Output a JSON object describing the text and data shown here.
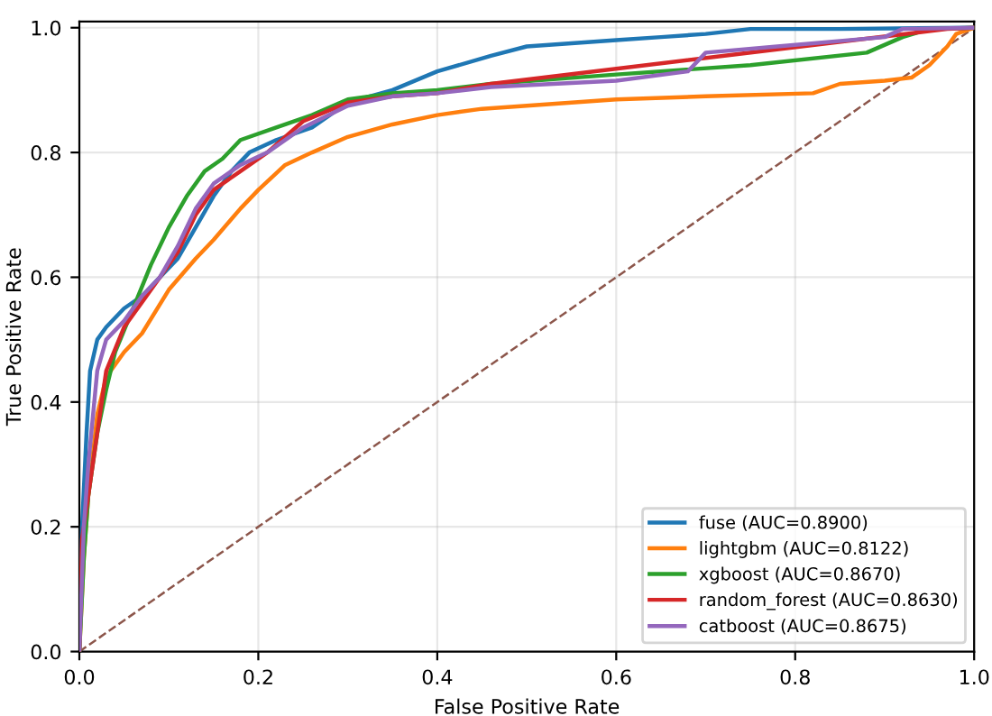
{
  "chart_data": {
    "type": "line",
    "xlabel": "False Positive Rate",
    "ylabel": "True Positive Rate",
    "xlim": [
      0,
      1
    ],
    "ylim": [
      0,
      1.01
    ],
    "xticks": [
      {
        "value": 0,
        "label": "0.0"
      },
      0.2,
      0.4,
      0.6,
      0.8,
      {
        "value": 1,
        "label": "1.0"
      }
    ],
    "yticks": [
      {
        "value": 0,
        "label": "0.0"
      },
      0.2,
      0.4,
      0.6,
      0.8,
      {
        "value": 1,
        "label": "1.0"
      }
    ],
    "grid": true,
    "legend": "bottom right",
    "line_style": "solid",
    "series": [
      {
        "name": "fuse (AUC=0.8900)",
        "color": "#1f77b4",
        "x": [
          0,
          0.003,
          0.008,
          0.012,
          0.02,
          0.03,
          0.05,
          0.07,
          0.09,
          0.11,
          0.13,
          0.15,
          0.17,
          0.19,
          0.22,
          0.26,
          0.3,
          0.35,
          0.4,
          0.46,
          0.5,
          0.55,
          0.6,
          0.65,
          0.7,
          0.75,
          0.85,
          1
        ],
        "values": [
          0,
          0.2,
          0.35,
          0.45,
          0.5,
          0.52,
          0.55,
          0.57,
          0.6,
          0.63,
          0.68,
          0.73,
          0.77,
          0.8,
          0.82,
          0.84,
          0.88,
          0.9,
          0.93,
          0.955,
          0.97,
          0.975,
          0.98,
          0.985,
          0.99,
          0.998,
          0.998,
          1
        ]
      },
      {
        "name": "lightgbm (AUC=0.8122)",
        "color": "#ff7f0e",
        "x": [
          0,
          0.005,
          0.01,
          0.02,
          0.03,
          0.05,
          0.07,
          0.1,
          0.13,
          0.15,
          0.18,
          0.2,
          0.23,
          0.26,
          0.3,
          0.35,
          0.4,
          0.45,
          0.5,
          0.6,
          0.7,
          0.82,
          0.85,
          0.9,
          0.93,
          0.95,
          0.97,
          0.98,
          1
        ],
        "values": [
          0,
          0.15,
          0.25,
          0.38,
          0.44,
          0.48,
          0.51,
          0.58,
          0.63,
          0.66,
          0.71,
          0.74,
          0.78,
          0.8,
          0.825,
          0.845,
          0.86,
          0.87,
          0.875,
          0.885,
          0.89,
          0.895,
          0.91,
          0.915,
          0.92,
          0.94,
          0.97,
          0.99,
          1
        ]
      },
      {
        "name": "xgboost (AUC=0.8670)",
        "color": "#2ca02c",
        "x": [
          0,
          0.005,
          0.01,
          0.02,
          0.03,
          0.04,
          0.06,
          0.08,
          0.1,
          0.12,
          0.14,
          0.16,
          0.18,
          0.22,
          0.26,
          0.3,
          0.35,
          0.4,
          0.46,
          0.6,
          0.75,
          0.88,
          0.92,
          0.95,
          1
        ],
        "values": [
          0,
          0.15,
          0.25,
          0.35,
          0.42,
          0.48,
          0.55,
          0.62,
          0.68,
          0.73,
          0.77,
          0.79,
          0.82,
          0.84,
          0.86,
          0.885,
          0.895,
          0.9,
          0.91,
          0.925,
          0.94,
          0.96,
          0.985,
          0.998,
          1
        ]
      },
      {
        "name": "random_forest (AUC=0.8630)",
        "color": "#d62728",
        "x": [
          0,
          0.003,
          0.01,
          0.02,
          0.03,
          0.05,
          0.07,
          0.09,
          0.11,
          0.13,
          0.15,
          0.18,
          0.21,
          0.25,
          0.3,
          0.35,
          0.4,
          0.46,
          0.97,
          1
        ],
        "values": [
          0,
          0.18,
          0.25,
          0.35,
          0.45,
          0.52,
          0.56,
          0.6,
          0.64,
          0.7,
          0.74,
          0.77,
          0.8,
          0.85,
          0.88,
          0.89,
          0.895,
          0.91,
          0.998,
          1
        ]
      },
      {
        "name": "catboost (AUC=0.8675)",
        "color": "#9467bd",
        "x": [
          0,
          0.005,
          0.01,
          0.02,
          0.03,
          0.05,
          0.07,
          0.09,
          0.11,
          0.13,
          0.15,
          0.18,
          0.21,
          0.25,
          0.3,
          0.35,
          0.4,
          0.46,
          0.6,
          0.68,
          0.7,
          0.78,
          0.9,
          0.92,
          1
        ],
        "values": [
          0,
          0.2,
          0.3,
          0.45,
          0.5,
          0.53,
          0.57,
          0.6,
          0.65,
          0.71,
          0.75,
          0.78,
          0.8,
          0.84,
          0.875,
          0.89,
          0.895,
          0.905,
          0.915,
          0.93,
          0.96,
          0.97,
          0.985,
          0.998,
          1
        ]
      },
      {
        "color": "#8c564b",
        "line_style": "dashed",
        "x": [
          0,
          1
        ],
        "values": [
          0,
          1
        ]
      }
    ]
  }
}
